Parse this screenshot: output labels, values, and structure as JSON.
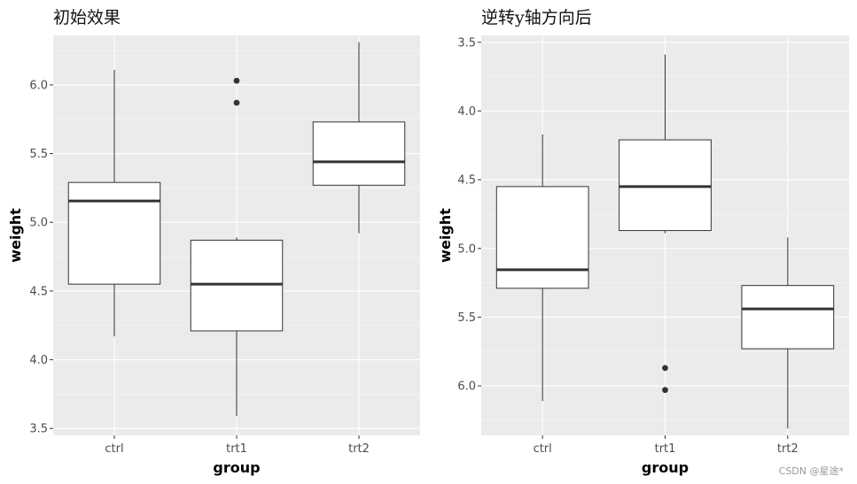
{
  "watermark": "CSDN @星途*",
  "chart_data": [
    {
      "type": "boxplot",
      "title": "初始效果",
      "xlabel": "group",
      "ylabel": "weight",
      "categories": [
        "ctrl",
        "trt1",
        "trt2"
      ],
      "y_reversed": false,
      "ylim": [
        3.45,
        6.36
      ],
      "yticks": [
        "3.5",
        "4.0",
        "4.5",
        "5.0",
        "5.5",
        "6.0"
      ],
      "boxes": [
        {
          "group": "ctrl",
          "whisker_low": 4.17,
          "q1": 4.55,
          "median": 5.155,
          "q3": 5.29,
          "whisker_high": 6.11,
          "outliers": []
        },
        {
          "group": "trt1",
          "whisker_low": 3.59,
          "q1": 4.21,
          "median": 4.55,
          "q3": 4.87,
          "whisker_high": 4.89,
          "outliers": [
            5.87,
            6.03
          ]
        },
        {
          "group": "trt2",
          "whisker_low": 4.92,
          "q1": 5.27,
          "median": 5.44,
          "q3": 5.73,
          "whisker_high": 6.31,
          "outliers": []
        }
      ]
    },
    {
      "type": "boxplot",
      "title": "逆转y轴方向后",
      "xlabel": "group",
      "ylabel": "weight",
      "categories": [
        "ctrl",
        "trt1",
        "trt2"
      ],
      "y_reversed": true,
      "ylim": [
        3.45,
        6.36
      ],
      "yticks": [
        "3.5",
        "4.0",
        "4.5",
        "5.0",
        "5.5",
        "6.0"
      ],
      "boxes": [
        {
          "group": "ctrl",
          "whisker_low": 4.17,
          "q1": 4.55,
          "median": 5.155,
          "q3": 5.29,
          "whisker_high": 6.11,
          "outliers": []
        },
        {
          "group": "trt1",
          "whisker_low": 3.59,
          "q1": 4.21,
          "median": 4.55,
          "q3": 4.87,
          "whisker_high": 4.89,
          "outliers": [
            5.87,
            6.03
          ]
        },
        {
          "group": "trt2",
          "whisker_low": 4.92,
          "q1": 5.27,
          "median": 5.44,
          "q3": 5.73,
          "whisker_high": 6.31,
          "outliers": []
        }
      ]
    }
  ]
}
